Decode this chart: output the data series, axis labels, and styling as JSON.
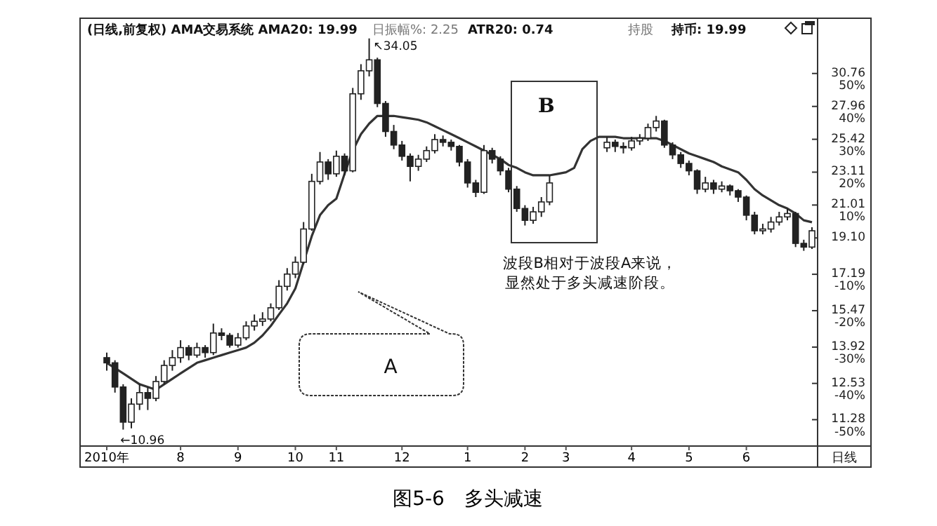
{
  "chart_data": {
    "type": "candlestick",
    "title": "图5-6　多头减速",
    "categories": [
      "2010年",
      null,
      null,
      null,
      null,
      null,
      null,
      null,
      null,
      "8",
      null,
      null,
      null,
      null,
      null,
      null,
      "9",
      null,
      null,
      null,
      null,
      null,
      null,
      "10",
      null,
      null,
      null,
      null,
      "11",
      null,
      null,
      null,
      null,
      null,
      null,
      null,
      "12",
      null,
      null,
      null,
      null,
      null,
      null,
      null,
      "1",
      null,
      null,
      null,
      null,
      null,
      null,
      "2",
      null,
      null,
      null,
      null,
      "3",
      null,
      null,
      null,
      null,
      null,
      null,
      null,
      "4",
      null,
      null,
      null,
      null,
      null,
      null,
      "5",
      null,
      null,
      null,
      null,
      null,
      null,
      "6",
      null,
      null,
      null,
      null,
      null,
      null,
      null,
      null
    ],
    "series": [
      {
        "color": "#222222",
        "ohlc": [
          [
            13.5,
            13.7,
            13.0,
            13.3
          ],
          [
            13.3,
            13.4,
            12.2,
            12.4
          ],
          [
            12.4,
            12.5,
            10.96,
            11.2
          ],
          [
            11.2,
            12.0,
            11.0,
            11.8
          ],
          [
            11.8,
            12.5,
            11.6,
            12.2
          ],
          [
            12.2,
            12.4,
            11.6,
            12.0
          ],
          [
            12.0,
            12.8,
            11.9,
            12.6
          ],
          [
            12.6,
            13.4,
            12.5,
            13.2
          ],
          [
            13.2,
            13.8,
            13.0,
            13.5
          ],
          [
            13.5,
            14.2,
            13.3,
            13.9
          ],
          [
            13.9,
            14.0,
            13.4,
            13.6
          ],
          [
            13.6,
            14.1,
            13.5,
            13.9
          ],
          [
            13.9,
            14.0,
            13.5,
            13.7
          ],
          [
            13.7,
            14.9,
            13.6,
            14.5
          ],
          [
            14.5,
            14.7,
            14.2,
            14.4
          ],
          [
            14.4,
            14.5,
            13.9,
            14.0
          ],
          [
            14.0,
            14.5,
            13.9,
            14.3
          ],
          [
            14.3,
            15.0,
            14.2,
            14.8
          ],
          [
            14.8,
            15.3,
            14.6,
            15.0
          ],
          [
            15.0,
            15.4,
            14.8,
            15.1
          ],
          [
            15.1,
            15.8,
            15.0,
            15.6
          ],
          [
            15.6,
            16.9,
            15.5,
            16.6
          ],
          [
            16.6,
            17.5,
            16.4,
            17.2
          ],
          [
            17.2,
            18.1,
            17.0,
            17.8
          ],
          [
            17.8,
            20.0,
            17.7,
            19.6
          ],
          [
            19.6,
            23.0,
            19.5,
            22.5
          ],
          [
            22.5,
            24.5,
            22.3,
            23.8
          ],
          [
            23.8,
            24.0,
            22.6,
            23.0
          ],
          [
            23.0,
            24.6,
            22.8,
            24.2
          ],
          [
            24.2,
            24.4,
            22.9,
            23.2
          ],
          [
            23.2,
            29.5,
            23.1,
            29.0
          ],
          [
            29.0,
            31.6,
            28.5,
            31.0
          ],
          [
            31.0,
            34.05,
            30.5,
            32.0
          ],
          [
            32.0,
            32.2,
            27.9,
            28.2
          ],
          [
            28.2,
            28.4,
            25.6,
            26.0
          ],
          [
            26.0,
            26.5,
            24.7,
            25.0
          ],
          [
            25.0,
            25.3,
            23.9,
            24.2
          ],
          [
            24.2,
            24.4,
            22.5,
            23.5
          ],
          [
            23.5,
            24.3,
            23.2,
            24.0
          ],
          [
            24.0,
            24.9,
            23.8,
            24.6
          ],
          [
            24.6,
            25.8,
            24.4,
            25.4
          ],
          [
            25.4,
            25.7,
            24.9,
            25.2
          ],
          [
            25.2,
            25.4,
            24.6,
            24.9
          ],
          [
            24.9,
            25.0,
            23.5,
            23.8
          ],
          [
            23.8,
            24.0,
            22.1,
            22.4
          ],
          [
            22.4,
            22.6,
            21.5,
            21.8
          ],
          [
            21.8,
            25.0,
            21.7,
            24.6
          ],
          [
            24.6,
            24.8,
            23.7,
            24.0
          ],
          [
            24.0,
            24.2,
            22.9,
            23.2
          ],
          [
            23.2,
            23.4,
            21.8,
            22.0
          ],
          [
            22.0,
            22.2,
            20.6,
            20.8
          ],
          [
            20.8,
            21.0,
            19.8,
            20.1
          ],
          [
            20.1,
            20.9,
            19.9,
            20.6
          ],
          [
            20.6,
            21.5,
            20.3,
            21.2
          ],
          [
            21.2,
            22.9,
            21.0,
            22.4
          ],
          null,
          null,
          null,
          null,
          null,
          null,
          [
            24.8,
            25.6,
            24.5,
            25.2
          ],
          [
            25.2,
            25.4,
            24.5,
            24.9
          ],
          [
            24.9,
            25.2,
            24.4,
            24.8
          ],
          [
            24.8,
            25.6,
            24.6,
            25.3
          ],
          [
            25.3,
            25.8,
            25.0,
            25.5
          ],
          [
            25.5,
            26.6,
            25.3,
            26.3
          ],
          [
            26.3,
            27.2,
            26.0,
            26.8
          ],
          [
            26.8,
            26.9,
            24.8,
            25.0
          ],
          [
            25.0,
            25.2,
            24.0,
            24.3
          ],
          [
            24.3,
            24.5,
            23.4,
            23.7
          ],
          [
            23.7,
            23.9,
            22.9,
            23.2
          ],
          [
            23.2,
            23.3,
            21.7,
            22.0
          ],
          [
            22.0,
            22.8,
            21.8,
            22.4
          ],
          [
            22.4,
            22.6,
            21.7,
            22.0
          ],
          [
            22.0,
            22.5,
            21.8,
            22.2
          ],
          [
            22.2,
            22.3,
            21.6,
            21.9
          ],
          [
            21.9,
            22.0,
            21.2,
            21.5
          ],
          [
            21.5,
            21.6,
            20.1,
            20.4
          ],
          [
            20.4,
            20.6,
            19.3,
            19.5
          ],
          [
            19.5,
            19.9,
            19.3,
            19.6
          ],
          [
            19.6,
            20.3,
            19.4,
            20.0
          ],
          [
            20.0,
            20.6,
            19.8,
            20.3
          ],
          [
            20.3,
            20.8,
            20.1,
            20.5
          ],
          [
            20.5,
            20.6,
            18.6,
            18.8
          ],
          [
            18.8,
            19.0,
            18.4,
            18.6
          ],
          [
            18.6,
            19.7,
            18.5,
            19.5
          ]
        ]
      },
      {
        "type": "line",
        "color": "#333333",
        "values": [
          13.3,
          13.1,
          12.9,
          12.7,
          12.5,
          12.4,
          12.3,
          12.5,
          12.7,
          12.9,
          13.1,
          13.3,
          13.4,
          13.5,
          13.6,
          13.7,
          13.8,
          13.9,
          14.1,
          14.4,
          14.8,
          15.3,
          15.8,
          16.5,
          17.8,
          19.2,
          20.4,
          21.0,
          21.4,
          23.0,
          24.6,
          25.8,
          26.6,
          27.2,
          27.2,
          27.2,
          27.1,
          27.0,
          26.9,
          26.7,
          26.4,
          26.1,
          25.8,
          25.5,
          25.2,
          24.9,
          24.6,
          24.3,
          24.0,
          23.6,
          23.4,
          23.1,
          22.9,
          22.9,
          22.9,
          23.0,
          23.1,
          23.4,
          24.7,
          25.3,
          25.6,
          25.6,
          25.6,
          25.5,
          25.5,
          25.5,
          25.5,
          25.5,
          25.3,
          25.0,
          24.7,
          24.4,
          24.2,
          24.0,
          23.8,
          23.5,
          23.3,
          23.1,
          22.6,
          22.0,
          21.6,
          21.3,
          21.0,
          20.8,
          20.5,
          20.1,
          19.99
        ]
      }
    ],
    "log": "y",
    "ylim": [
      10.45,
      36.1
    ],
    "yticks": [
      30.76,
      27.96,
      25.42,
      23.11,
      21.01,
      {
        "value": 19.1,
        "label": "19.10"
      },
      17.19,
      15.47,
      13.92,
      12.53,
      11.28
    ],
    "y2lim": [
      -69.7,
      66.8
    ],
    "y2ticks": [
      {
        "value": 50,
        "label": "50%"
      },
      {
        "value": 40,
        "label": "40%"
      },
      {
        "value": 30,
        "label": "30%"
      },
      {
        "value": 20,
        "label": "20%"
      },
      {
        "value": 10,
        "label": "10%"
      }
    ],
    "y3lim": [
      -63.0,
      60.5
    ],
    "y3ticks": [
      {
        "value": -10,
        "label": "-10%"
      },
      {
        "value": -20,
        "label": "-20%"
      },
      {
        "value": -30,
        "label": "-30%"
      },
      {
        "value": -40,
        "label": "-40%"
      },
      {
        "value": -50,
        "label": "-50%"
      }
    ],
    "annotations": [
      "(日线,前复权) AMA交易系统  AMA20: 19.99",
      "日振幅%: 2.25",
      "ATR20: 0.74",
      "持股",
      "持币: 19.99",
      "日线",
      "B",
      "A",
      "波段B相对于波段A来说，",
      "显然处于多头减速阶段。",
      "↖34.05",
      "←10.96"
    ]
  }
}
